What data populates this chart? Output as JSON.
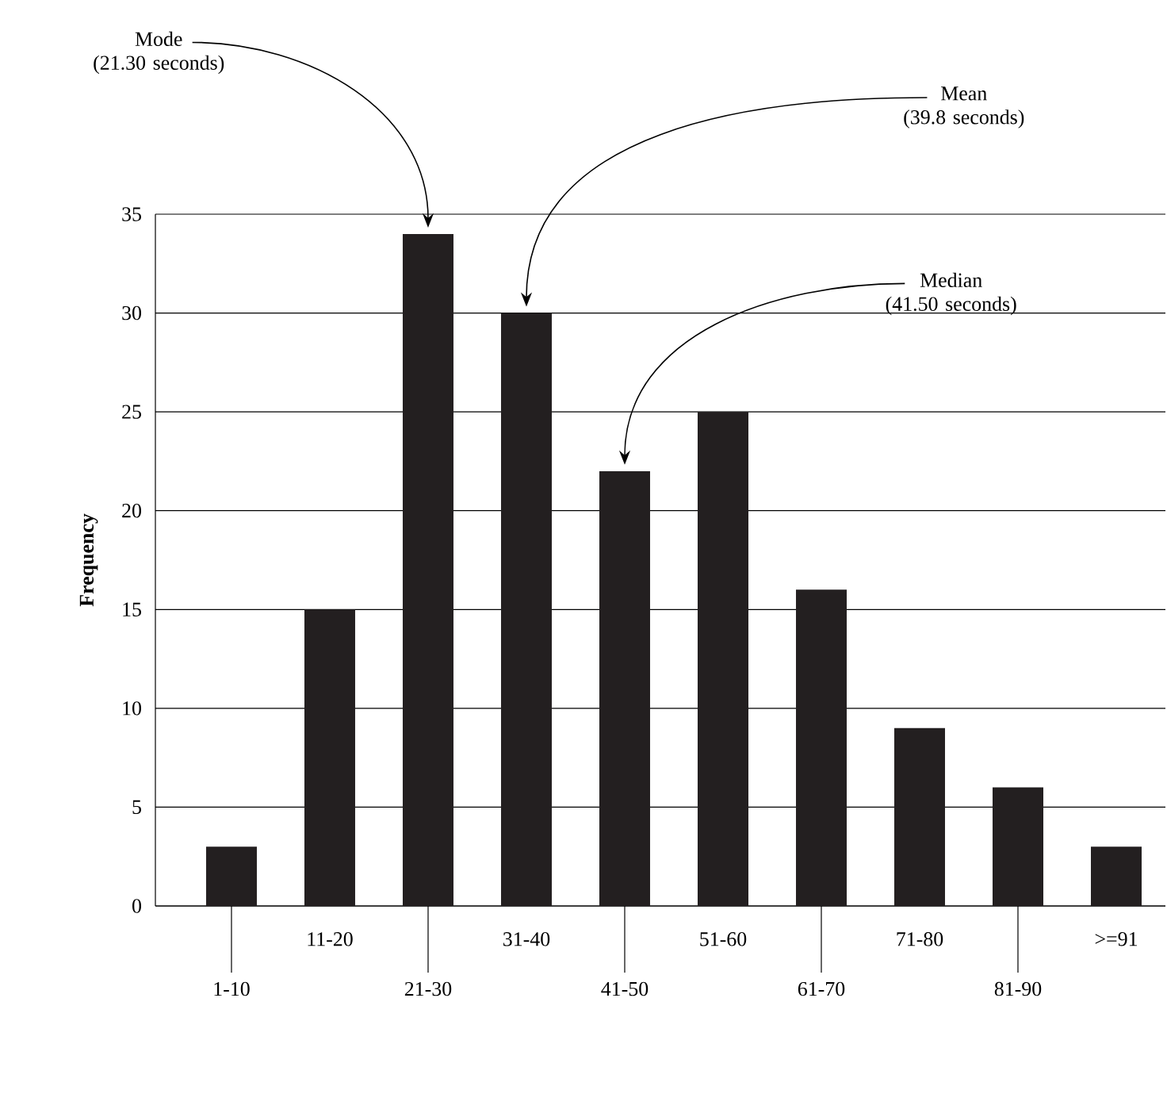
{
  "chart_data": {
    "type": "bar",
    "categories": [
      "1-10",
      "11-20",
      "21-30",
      "31-40",
      "41-50",
      "51-60",
      "61-70",
      "71-80",
      "81-90",
      ">=91"
    ],
    "values": [
      3,
      15,
      34,
      30,
      22,
      25,
      16,
      9,
      6,
      3
    ],
    "color": "#231f20",
    "ylabel": "Frequency",
    "ylim": [
      0,
      35
    ],
    "yticks": [
      0,
      5,
      10,
      15,
      20,
      25,
      30,
      35
    ],
    "grid": "y",
    "annotations": [
      "Mode\n(21.30 seconds)",
      "Mean\n(39.8 seconds)",
      "Median\n(41.50 seconds)"
    ]
  }
}
